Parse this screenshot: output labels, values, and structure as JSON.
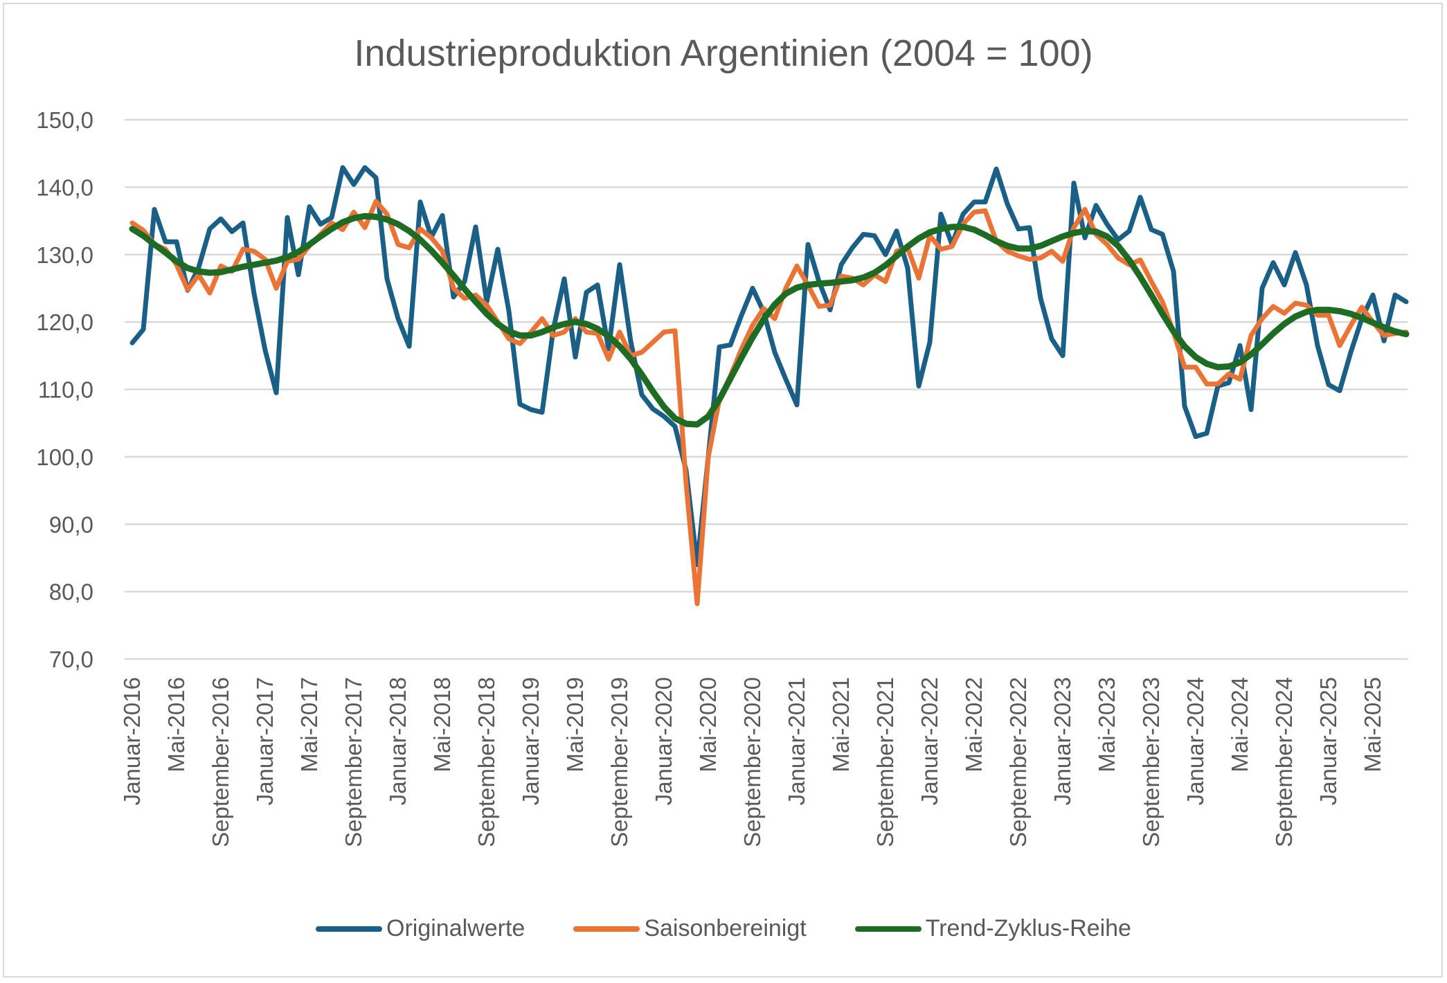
{
  "chart_data": {
    "type": "line",
    "title": "Industrieproduktion Argentinien (2004 = 100)",
    "xlabel": "",
    "ylabel": "",
    "x_range": [
      "Januar-2016",
      "August-2025"
    ],
    "x_frequency": "monthly",
    "x_tick_labels": [
      "Januar-2016",
      "Mai-2016",
      "September-2016",
      "Januar-2017",
      "Mai-2017",
      "September-2017",
      "Januar-2018",
      "Mai-2018",
      "September-2018",
      "Januar-2019",
      "Mai-2019",
      "September-2019",
      "Januar-2020",
      "Mai-2020",
      "September-2020",
      "Januar-2021",
      "Mai-2021",
      "September-2021",
      "Januar-2022",
      "Mai-2022",
      "September-2022",
      "Januar-2023",
      "Mai-2023",
      "September-2023",
      "Januar-2024",
      "Mai-2024",
      "September-2024",
      "Januar-2025",
      "Mai-2025"
    ],
    "y_tick_labels": [
      "150,0",
      "140,0",
      "130,0",
      "120,0",
      "110,0",
      "100,0",
      "90,0",
      "80,0",
      "70,0"
    ],
    "ylim": [
      70,
      150
    ],
    "grid": "horizontal",
    "legend": "bottom",
    "series": [
      {
        "name": "Originalwerte",
        "color": "#1a5f85",
        "values": [
          116.9,
          118.9,
          136.7,
          131.9,
          131.9,
          124.7,
          128.1,
          133.8,
          135.3,
          133.4,
          134.7,
          124.2,
          115.8,
          109.5,
          135.5,
          127,
          137.1,
          134.5,
          135.5,
          142.9,
          140.4,
          142.9,
          141.4,
          126.4,
          120.5,
          116.4,
          137.8,
          132.6,
          135.8,
          123.7,
          126,
          134.1,
          123,
          130.8,
          121.6,
          107.8,
          107,
          106.6,
          118.8,
          126.4,
          114.8,
          124.4,
          125.5,
          116,
          128.5,
          117.1,
          109.2,
          107.1,
          106,
          104.5,
          98,
          84,
          100,
          116.3,
          116.6,
          121,
          125,
          121.5,
          115.5,
          111.5,
          107.7,
          131.5,
          126,
          121.8,
          128.5,
          131,
          133,
          132.8,
          130,
          133.5,
          128,
          110.5,
          117,
          136,
          131.5,
          136,
          137.8,
          137.8,
          142.7,
          137.5,
          133.8,
          134,
          123.5,
          117.5,
          115,
          140.6,
          132.5,
          137.3,
          134.5,
          132.2,
          133.5,
          138.5,
          133.7,
          133,
          127.5,
          107.5,
          103,
          103.5,
          110.5,
          111,
          116.5,
          107,
          125,
          128.8,
          125.5,
          130.3,
          125.5,
          116.5,
          110.7,
          109.8,
          115.5,
          120.5,
          124,
          117.2,
          124,
          123
        ]
      },
      {
        "name": "Saisonbereinigt",
        "color": "#e97435",
        "values": [
          134.7,
          133.6,
          131.5,
          130.8,
          128.5,
          124.8,
          127,
          124.3,
          128.3,
          127.5,
          130.8,
          130.5,
          129.3,
          125,
          129,
          129.3,
          131.3,
          133,
          134.7,
          133.7,
          136.3,
          134,
          137.9,
          136,
          131.5,
          131,
          133.8,
          132.5,
          130.5,
          125,
          123.5,
          124,
          122.5,
          120,
          117.5,
          116.8,
          118.5,
          120.5,
          118,
          118.5,
          120.5,
          118.5,
          118.3,
          114.5,
          118.5,
          115,
          115.5,
          117,
          118.5,
          118.7,
          96,
          78.2,
          100,
          108.5,
          112,
          116,
          119.5,
          122,
          120.5,
          125,
          128.3,
          125.5,
          122.3,
          122.5,
          126.8,
          126.5,
          125.5,
          127,
          126,
          130.5,
          131,
          126.5,
          132.8,
          130.8,
          131.2,
          134.5,
          136.3,
          136.5,
          132,
          130.5,
          129.8,
          129.3,
          129.5,
          130.5,
          129,
          134,
          136.7,
          133,
          131.5,
          129.5,
          128.5,
          129.2,
          126,
          123,
          118.5,
          113.3,
          113.3,
          110.8,
          110.8,
          112.3,
          111.5,
          118,
          120.5,
          122.3,
          121.3,
          122.8,
          122.5,
          121,
          121,
          116.5,
          119.5,
          122.2,
          120,
          118,
          118.3,
          118.5
        ]
      },
      {
        "name": "Trend-Zyklus-Reihe",
        "color": "#1e6b23",
        "values": [
          133.8,
          132.8,
          131.5,
          130.3,
          129,
          128,
          127.5,
          127.3,
          127.4,
          127.8,
          128.2,
          128.5,
          128.8,
          129.1,
          129.6,
          130.4,
          131.5,
          132.7,
          133.8,
          134.8,
          135.4,
          135.7,
          135.6,
          135.2,
          134.5,
          133.5,
          132.2,
          130.6,
          128.8,
          126.9,
          124.9,
          123,
          121.2,
          119.7,
          118.6,
          118,
          118,
          118.5,
          119.2,
          119.7,
          120,
          119.7,
          119,
          117.9,
          116.4,
          114.5,
          112.2,
          109.7,
          107.4,
          105.7,
          104.9,
          104.8,
          106,
          108.5,
          111.6,
          114.7,
          117.7,
          120.4,
          122.6,
          124.2,
          125.1,
          125.5,
          125.7,
          125.8,
          126,
          126.2,
          126.6,
          127.3,
          128.4,
          129.8,
          131.2,
          132.4,
          133.3,
          133.8,
          134.1,
          134.1,
          133.7,
          132.9,
          132,
          131.3,
          130.9,
          130.9,
          131.3,
          132,
          132.7,
          133.2,
          133.5,
          133.4,
          132.7,
          131.3,
          129.2,
          126.7,
          124,
          121.2,
          118.6,
          116.4,
          114.8,
          113.8,
          113.3,
          113.4,
          114,
          115.2,
          116.7,
          118.3,
          119.7,
          120.8,
          121.5,
          121.8,
          121.8,
          121.6,
          121.2,
          120.6,
          119.9,
          119.2,
          118.6,
          118.2
        ]
      }
    ]
  }
}
